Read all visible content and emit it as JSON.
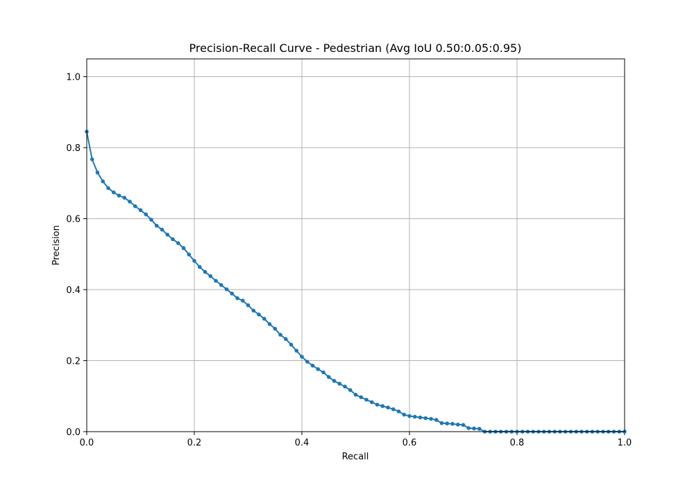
{
  "chart_data": {
    "type": "line",
    "title": "Precision-Recall Curve - Pedestrian (Avg IoU 0.50:0.05:0.95)",
    "xlabel": "Recall",
    "ylabel": "Precision",
    "xlim": [
      0,
      1
    ],
    "ylim": [
      0,
      1.05
    ],
    "xticks": [
      0,
      0.2,
      0.4,
      0.6,
      0.8,
      1.0
    ],
    "xtick_labels": [
      "0.0",
      "0.2",
      "0.4",
      "0.6",
      "0.8",
      "1.0"
    ],
    "yticks": [
      0,
      0.2,
      0.4,
      0.6,
      0.8,
      1.0
    ],
    "ytick_labels": [
      "0.0",
      "0.2",
      "0.4",
      "0.6",
      "0.8",
      "1.0"
    ],
    "grid": true,
    "series": [
      {
        "color": "#1f77b4",
        "marker": "circle",
        "x": [
          0.0,
          0.01,
          0.02,
          0.03,
          0.04,
          0.05,
          0.06,
          0.07,
          0.08,
          0.09,
          0.1,
          0.11,
          0.12,
          0.13,
          0.14,
          0.15,
          0.16,
          0.17,
          0.18,
          0.19,
          0.2,
          0.21,
          0.22,
          0.23,
          0.24,
          0.25,
          0.26,
          0.27,
          0.28,
          0.29,
          0.3,
          0.31,
          0.32,
          0.33,
          0.34,
          0.35,
          0.36,
          0.37,
          0.38,
          0.39,
          0.4,
          0.41,
          0.42,
          0.43,
          0.44,
          0.45,
          0.46,
          0.47,
          0.48,
          0.49,
          0.5,
          0.51,
          0.52,
          0.53,
          0.54,
          0.55,
          0.56,
          0.57,
          0.58,
          0.59,
          0.6,
          0.61,
          0.62,
          0.63,
          0.64,
          0.65,
          0.66,
          0.67,
          0.68,
          0.69,
          0.7,
          0.71,
          0.72,
          0.73,
          0.74,
          0.75,
          0.76,
          0.77,
          0.78,
          0.79,
          0.8,
          0.81,
          0.82,
          0.83,
          0.84,
          0.85,
          0.86,
          0.87,
          0.88,
          0.89,
          0.9,
          0.91,
          0.92,
          0.93,
          0.94,
          0.95,
          0.96,
          0.97,
          0.98,
          0.99,
          1.0
        ],
        "y": [
          0.845,
          0.767,
          0.73,
          0.705,
          0.686,
          0.674,
          0.665,
          0.659,
          0.648,
          0.635,
          0.624,
          0.612,
          0.597,
          0.58,
          0.569,
          0.555,
          0.542,
          0.531,
          0.517,
          0.499,
          0.481,
          0.464,
          0.45,
          0.438,
          0.425,
          0.413,
          0.401,
          0.389,
          0.376,
          0.369,
          0.356,
          0.341,
          0.33,
          0.318,
          0.303,
          0.29,
          0.273,
          0.261,
          0.245,
          0.228,
          0.211,
          0.197,
          0.186,
          0.176,
          0.167,
          0.154,
          0.143,
          0.135,
          0.127,
          0.117,
          0.104,
          0.097,
          0.09,
          0.083,
          0.076,
          0.072,
          0.068,
          0.063,
          0.057,
          0.048,
          0.044,
          0.042,
          0.04,
          0.038,
          0.036,
          0.033,
          0.024,
          0.023,
          0.022,
          0.02,
          0.019,
          0.01,
          0.009,
          0.008,
          0.0,
          0.0,
          0.0,
          0.0,
          0.0,
          0.0,
          0.0,
          0.0,
          0.0,
          0.0,
          0.0,
          0.0,
          0.0,
          0.0,
          0.0,
          0.0,
          0.0,
          0.0,
          0.0,
          0.0,
          0.0,
          0.0,
          0.0,
          0.0,
          0.0,
          0.0,
          0.0
        ]
      }
    ]
  }
}
